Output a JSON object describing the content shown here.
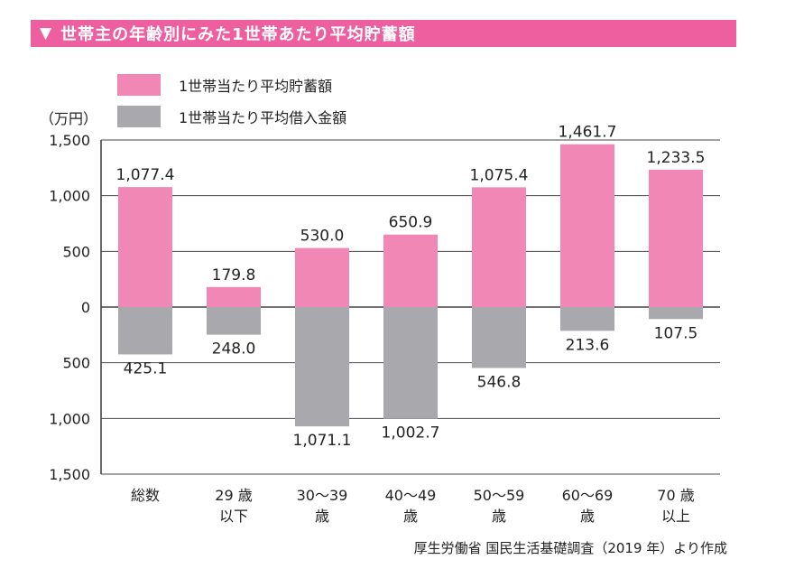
{
  "header": {
    "triangle": "▼",
    "title": "世帯主の年齢別にみた1世帯あたり平均貯蓄額"
  },
  "colors": {
    "savings": "#f087b4",
    "debt": "#a9a9ad",
    "title_bg": "#ee5fa0",
    "gridline": "#444444"
  },
  "unit_label": "（万円）",
  "source": "厚生労働省 国民生活基礎調査（2019 年）より作成",
  "chart_data": {
    "type": "bar",
    "title": "世帯主の年齢別にみた1世帯あたり平均貯蓄額",
    "ylabel": "（万円）",
    "ylim": [
      -1500,
      1500
    ],
    "yticks": [
      1500,
      1000,
      500,
      0,
      -500,
      -1000,
      -1500
    ],
    "ytick_labels": [
      "1,500",
      "1,000",
      "500",
      "0",
      "500",
      "1,000",
      "1,500"
    ],
    "categories": [
      [
        "総数"
      ],
      [
        "29 歳",
        "以下"
      ],
      [
        "30〜39",
        "歳"
      ],
      [
        "40〜49",
        "歳"
      ],
      [
        "50〜59",
        "歳"
      ],
      [
        "60〜69",
        "歳"
      ],
      [
        "70 歳",
        "以上"
      ]
    ],
    "series": [
      {
        "name": "1世帯当たり平均貯蓄額",
        "values": [
          1077.4,
          179.8,
          530.0,
          650.9,
          1075.4,
          1461.7,
          1233.5
        ],
        "labels": [
          "1,077.4",
          "179.8",
          "530.0",
          "650.9",
          "1,075.4",
          "1,461.7",
          "1,233.5"
        ]
      },
      {
        "name": "1世帯当たり平均借入金額",
        "values": [
          425.1,
          248.0,
          1071.1,
          1002.7,
          546.8,
          213.6,
          107.5
        ],
        "labels": [
          "425.1",
          "248.0",
          "1,071.1",
          "1,002.7",
          "546.8",
          "213.6",
          "107.5"
        ]
      }
    ]
  }
}
